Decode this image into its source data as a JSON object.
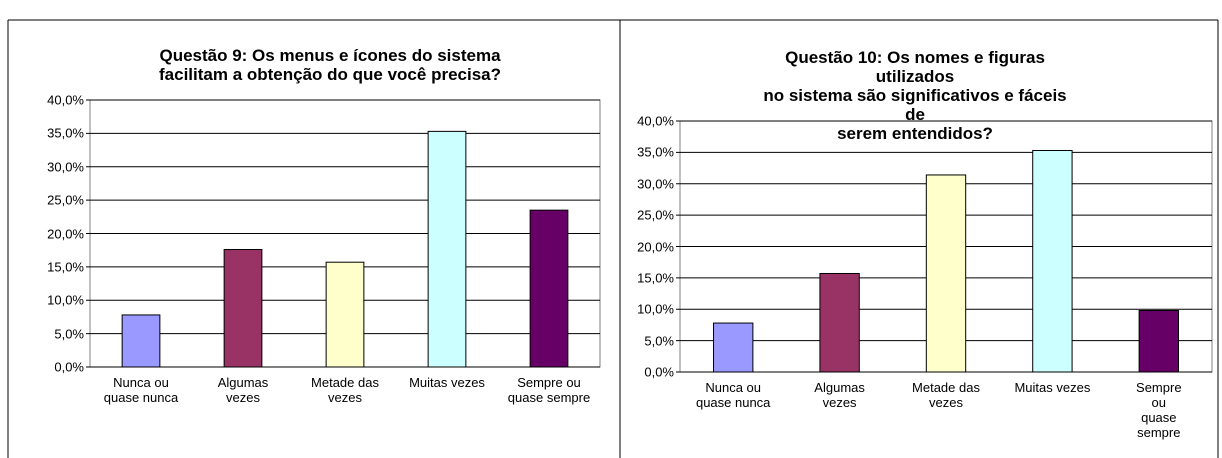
{
  "chart_data": [
    {
      "type": "bar",
      "title": "Questão 9: Os menus e ícones do sistema\nfacilitam a obtenção do que você precisa?",
      "categories": [
        "Nunca ou\nquase nunca",
        "Algumas\nvezes",
        "Metade das\nvezes",
        "Muitas vezes",
        "Sempre ou\nquase sempre"
      ],
      "series": [
        {
          "values": [
            7.8,
            17.6,
            15.7,
            35.3,
            23.5
          ],
          "colors": [
            "#9999ff",
            "#993366",
            "#ffffcc",
            "#ccffff",
            "#660066"
          ]
        }
      ],
      "ylim": [
        0,
        40
      ],
      "yticks": [
        {
          "value": 0,
          "label": "0,0%"
        },
        {
          "value": 5,
          "label": "5,0%"
        },
        {
          "value": 10,
          "label": "10,0%"
        },
        {
          "value": 15,
          "label": "15,0%"
        },
        {
          "value": 20,
          "label": "20,0%"
        },
        {
          "value": 25,
          "label": "25,0%"
        },
        {
          "value": 30,
          "label": "30,0%"
        },
        {
          "value": 35,
          "label": "35,0%"
        },
        {
          "value": 40,
          "label": "40,0%"
        }
      ],
      "grid": true
    },
    {
      "type": "bar",
      "title": "Questão 10: Os nomes e figuras utilizados\nno sistema são significativos e fáceis de\nserem entendidos?",
      "categories": [
        "Nunca ou\nquase nunca",
        "Algumas\nvezes",
        "Metade das\nvezes",
        "Muitas vezes",
        "Sempre ou\nquase sempre"
      ],
      "series": [
        {
          "values": [
            7.8,
            15.7,
            31.4,
            35.3,
            9.8
          ],
          "colors": [
            "#9999ff",
            "#993366",
            "#ffffcc",
            "#ccffff",
            "#660066"
          ]
        }
      ],
      "ylim": [
        0,
        40
      ],
      "yticks": [
        {
          "value": 0,
          "label": "0,0%"
        },
        {
          "value": 5,
          "label": "5,0%"
        },
        {
          "value": 10,
          "label": "10,0%"
        },
        {
          "value": 15,
          "label": "15,0%"
        },
        {
          "value": 20,
          "label": "20,0%"
        },
        {
          "value": 25,
          "label": "25,0%"
        },
        {
          "value": 30,
          "label": "30,0%"
        },
        {
          "value": 35,
          "label": "35,0%"
        },
        {
          "value": 40,
          "label": "40,0%"
        }
      ],
      "grid": true
    }
  ]
}
